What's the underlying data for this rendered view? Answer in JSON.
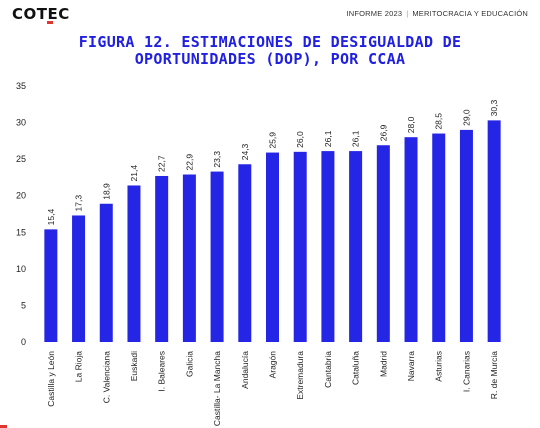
{
  "header": {
    "logo": "COTEC",
    "report": "INFORME 2023",
    "section": "MERITOCRACIA Y EDUCACIÓN"
  },
  "colors": {
    "bar": "#2525e6",
    "title": "#2020e0",
    "accent": "#e0362f"
  },
  "chart_data": {
    "type": "bar",
    "title_line1": "FIGURA 12. ESTIMACIONES DE DESIGUALDAD DE",
    "title_line2": "OPORTUNIDADES (DOP), POR CCAA",
    "categories": [
      "Castilla y León",
      "La Rioja",
      "C. Valenciana",
      "Euskadi",
      "I. Baleares",
      "Galicia",
      "Castilla- La Mancha",
      "Andalucía",
      "Aragón",
      "Extremadura",
      "Cantabria",
      "Cataluña",
      "Madrid",
      "Navarra",
      "Asturias",
      "I. Canarias",
      "R. de Murcia"
    ],
    "values": [
      15.4,
      17.3,
      18.9,
      21.4,
      22.7,
      22.9,
      23.3,
      24.3,
      25.9,
      26.0,
      26.1,
      26.1,
      26.9,
      28.0,
      28.5,
      29.0,
      30.3
    ],
    "value_labels": [
      "15,4",
      "17,3",
      "18,9",
      "21,4",
      "22,7",
      "22,9",
      "23,3",
      "24,3",
      "25,9",
      "26,0",
      "26,1",
      "26,1",
      "26,9",
      "28,0",
      "28,5",
      "29,0",
      "30,3"
    ],
    "yticks": [
      0,
      5,
      10,
      15,
      20,
      25,
      30,
      35
    ],
    "ylim": [
      0,
      35
    ],
    "grid": false,
    "legend": "none"
  }
}
